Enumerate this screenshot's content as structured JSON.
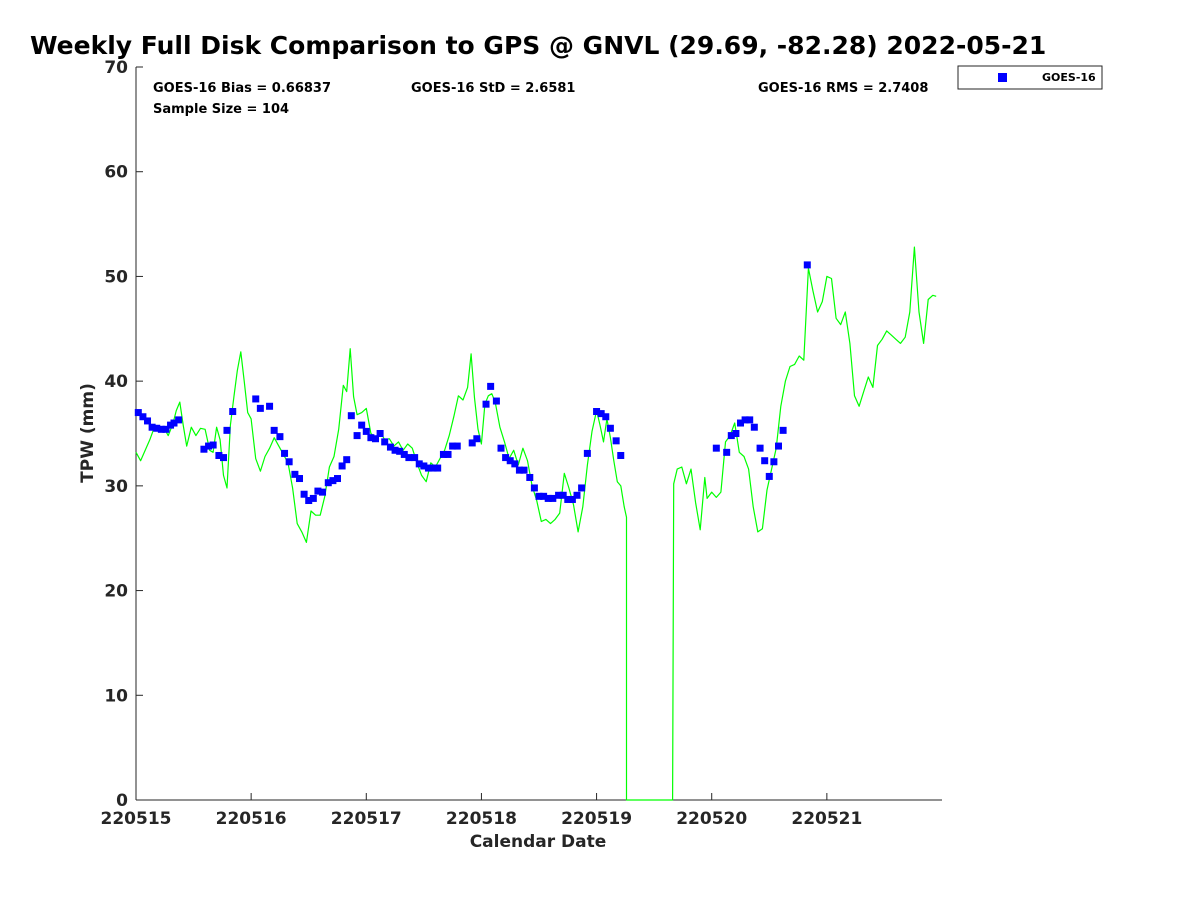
{
  "chart_data": {
    "type": "scatter",
    "title": "Weekly Full Disk Comparison to GPS @ GNVL (29.69, -82.28) 2022-05-21",
    "xlabel": "Calendar Date",
    "ylabel": "TPW (mm)",
    "xlim": [
      0,
      7
    ],
    "ylim": [
      0,
      70
    ],
    "x_unit": "days since 220515",
    "x_ticks": [
      {
        "value": 0,
        "label": "220515"
      },
      {
        "value": 1,
        "label": "220516"
      },
      {
        "value": 2,
        "label": "220517"
      },
      {
        "value": 3,
        "label": "220518"
      },
      {
        "value": 4,
        "label": "220519"
      },
      {
        "value": 5,
        "label": "220520"
      },
      {
        "value": 6,
        "label": "220521"
      }
    ],
    "y_ticks": [
      0,
      10,
      20,
      30,
      40,
      50,
      60,
      70
    ],
    "grid": false,
    "legend": {
      "position": "outside-top-right",
      "entries": [
        "GOES-16"
      ]
    },
    "stats": {
      "bias": "GOES-16 Bias = 0.66837",
      "std": "GOES-16 StD = 2.6581",
      "rms": "GOES-16 RMS = 2.7408",
      "sample": "Sample Size = 104"
    },
    "series": [
      {
        "name": "GPS",
        "kind": "line",
        "color": "#00ff00",
        "points": [
          [
            0,
            33.2
          ],
          [
            0.04,
            32.4
          ],
          [
            0.08,
            33.4
          ],
          [
            0.12,
            34.4
          ],
          [
            0.16,
            35.6
          ],
          [
            0.2,
            35.2
          ],
          [
            0.24,
            35.6
          ],
          [
            0.28,
            34.8
          ],
          [
            0.32,
            35.9
          ],
          [
            0.35,
            37.2
          ],
          [
            0.38,
            38
          ],
          [
            0.41,
            35.8
          ],
          [
            0.44,
            33.8
          ],
          [
            0.48,
            35.6
          ],
          [
            0.52,
            34.8
          ],
          [
            0.56,
            35.5
          ],
          [
            0.6,
            35.4
          ],
          [
            0.64,
            33.4
          ],
          [
            0.67,
            33.2
          ],
          [
            0.7,
            35.6
          ],
          [
            0.73,
            34.4
          ],
          [
            0.76,
            31
          ],
          [
            0.79,
            29.8
          ],
          [
            0.82,
            35.8
          ],
          [
            0.85,
            38.5
          ],
          [
            0.88,
            41
          ],
          [
            0.91,
            42.8
          ],
          [
            0.94,
            40
          ],
          [
            0.97,
            37
          ],
          [
            1,
            36.4
          ],
          [
            1.04,
            32.6
          ],
          [
            1.08,
            31.4
          ],
          [
            1.12,
            32.8
          ],
          [
            1.16,
            33.6
          ],
          [
            1.2,
            34.6
          ],
          [
            1.24,
            33.8
          ],
          [
            1.28,
            33
          ],
          [
            1.32,
            32.2
          ],
          [
            1.36,
            29.8
          ],
          [
            1.4,
            26.4
          ],
          [
            1.44,
            25.6
          ],
          [
            1.48,
            24.6
          ],
          [
            1.52,
            27.6
          ],
          [
            1.56,
            27.2
          ],
          [
            1.6,
            27.2
          ],
          [
            1.64,
            29
          ],
          [
            1.68,
            31.8
          ],
          [
            1.72,
            32.8
          ],
          [
            1.76,
            35.4
          ],
          [
            1.8,
            39.6
          ],
          [
            1.83,
            39
          ],
          [
            1.86,
            43.1
          ],
          [
            1.89,
            38.5
          ],
          [
            1.92,
            36.8
          ],
          [
            1.96,
            37
          ],
          [
            2,
            37.4
          ],
          [
            2.04,
            35
          ],
          [
            2.08,
            34.6
          ],
          [
            2.12,
            35.2
          ],
          [
            2.16,
            34.4
          ],
          [
            2.2,
            34.5
          ],
          [
            2.24,
            33.8
          ],
          [
            2.28,
            34.2
          ],
          [
            2.32,
            33.4
          ],
          [
            2.36,
            34
          ],
          [
            2.4,
            33.6
          ],
          [
            2.44,
            32.2
          ],
          [
            2.48,
            31
          ],
          [
            2.52,
            30.4
          ],
          [
            2.56,
            32.2
          ],
          [
            2.6,
            31.8
          ],
          [
            2.64,
            32.6
          ],
          [
            2.68,
            33.4
          ],
          [
            2.72,
            34.8
          ],
          [
            2.76,
            36.6
          ],
          [
            2.8,
            38.6
          ],
          [
            2.84,
            38.2
          ],
          [
            2.88,
            39.4
          ],
          [
            2.91,
            42.6
          ],
          [
            2.94,
            38.4
          ],
          [
            2.97,
            35.4
          ],
          [
            3,
            34
          ],
          [
            3.03,
            37.8
          ],
          [
            3.06,
            38.6
          ],
          [
            3.09,
            38.8
          ],
          [
            3.12,
            38
          ],
          [
            3.16,
            35.6
          ],
          [
            3.2,
            34.2
          ],
          [
            3.24,
            32.6
          ],
          [
            3.28,
            33.4
          ],
          [
            3.32,
            32
          ],
          [
            3.36,
            33.6
          ],
          [
            3.4,
            32.4
          ],
          [
            3.44,
            30
          ],
          [
            3.48,
            28.6
          ],
          [
            3.52,
            26.6
          ],
          [
            3.56,
            26.8
          ],
          [
            3.6,
            26.4
          ],
          [
            3.64,
            26.8
          ],
          [
            3.68,
            27.4
          ],
          [
            3.72,
            31.2
          ],
          [
            3.76,
            29.8
          ],
          [
            3.8,
            28.2
          ],
          [
            3.84,
            25.6
          ],
          [
            3.88,
            28
          ],
          [
            3.92,
            32
          ],
          [
            3.96,
            35.2
          ],
          [
            4,
            37.2
          ],
          [
            4.03,
            35.8
          ],
          [
            4.06,
            34.2
          ],
          [
            4.09,
            36.4
          ],
          [
            4.12,
            34.6
          ],
          [
            4.15,
            32.4
          ],
          [
            4.18,
            30.4
          ],
          [
            4.21,
            30
          ],
          [
            4.24,
            28
          ],
          [
            4.26,
            27
          ],
          [
            4.26,
            0
          ],
          [
            4.66,
            0
          ],
          [
            4.67,
            30.2
          ],
          [
            4.7,
            31.6
          ],
          [
            4.74,
            31.8
          ],
          [
            4.78,
            30.2
          ],
          [
            4.82,
            31.6
          ],
          [
            4.86,
            28.4
          ],
          [
            4.9,
            25.8
          ],
          [
            4.94,
            30.8
          ],
          [
            4.96,
            28.8
          ],
          [
            5,
            29.4
          ],
          [
            5.04,
            28.9
          ],
          [
            5.08,
            29.4
          ],
          [
            5.12,
            34.2
          ],
          [
            5.16,
            34.8
          ],
          [
            5.2,
            36
          ],
          [
            5.24,
            33.2
          ],
          [
            5.28,
            32.8
          ],
          [
            5.32,
            31.6
          ],
          [
            5.36,
            28
          ],
          [
            5.4,
            25.6
          ],
          [
            5.44,
            25.9
          ],
          [
            5.48,
            29.6
          ],
          [
            5.52,
            31.6
          ],
          [
            5.56,
            33.6
          ],
          [
            5.6,
            37.6
          ],
          [
            5.64,
            40
          ],
          [
            5.68,
            41.4
          ],
          [
            5.72,
            41.6
          ],
          [
            5.76,
            42.4
          ],
          [
            5.8,
            42
          ],
          [
            5.84,
            50.8
          ],
          [
            5.88,
            48.6
          ],
          [
            5.92,
            46.6
          ],
          [
            5.96,
            47.6
          ],
          [
            6,
            50
          ],
          [
            6.04,
            49.8
          ],
          [
            6.08,
            46
          ],
          [
            6.12,
            45.4
          ],
          [
            6.16,
            46.6
          ],
          [
            6.2,
            43.6
          ],
          [
            6.24,
            38.6
          ],
          [
            6.28,
            37.6
          ],
          [
            6.32,
            39
          ],
          [
            6.36,
            40.4
          ],
          [
            6.4,
            39.4
          ],
          [
            6.44,
            43.4
          ],
          [
            6.48,
            44
          ],
          [
            6.52,
            44.8
          ],
          [
            6.56,
            44.4
          ],
          [
            6.6,
            44
          ],
          [
            6.64,
            43.6
          ],
          [
            6.68,
            44.2
          ],
          [
            6.72,
            46.6
          ],
          [
            6.76,
            52.8
          ],
          [
            6.8,
            46.6
          ],
          [
            6.84,
            43.6
          ],
          [
            6.88,
            47.8
          ],
          [
            6.92,
            48.2
          ],
          [
            6.95,
            48.1
          ]
        ]
      },
      {
        "name": "GOES-16",
        "kind": "scatter",
        "color": "#0000ff",
        "points": [
          [
            0.02,
            37
          ],
          [
            0.06,
            36.6
          ],
          [
            0.1,
            36.2
          ],
          [
            0.14,
            35.6
          ],
          [
            0.18,
            35.5
          ],
          [
            0.22,
            35.4
          ],
          [
            0.26,
            35.4
          ],
          [
            0.3,
            35.8
          ],
          [
            0.33,
            36
          ],
          [
            0.37,
            36.3
          ],
          [
            0.59,
            33.5
          ],
          [
            0.63,
            33.8
          ],
          [
            0.67,
            33.9
          ],
          [
            0.72,
            32.9
          ],
          [
            0.76,
            32.7
          ],
          [
            0.79,
            35.3
          ],
          [
            0.84,
            37.1
          ],
          [
            1.04,
            38.3
          ],
          [
            1.08,
            37.4
          ],
          [
            1.16,
            37.6
          ],
          [
            1.2,
            35.3
          ],
          [
            1.25,
            34.7
          ],
          [
            1.29,
            33.1
          ],
          [
            1.33,
            32.3
          ],
          [
            1.38,
            31.1
          ],
          [
            1.42,
            30.7
          ],
          [
            1.46,
            29.2
          ],
          [
            1.5,
            28.6
          ],
          [
            1.54,
            28.8
          ],
          [
            1.58,
            29.5
          ],
          [
            1.62,
            29.4
          ],
          [
            1.67,
            30.3
          ],
          [
            1.71,
            30.5
          ],
          [
            1.75,
            30.7
          ],
          [
            1.79,
            31.9
          ],
          [
            1.83,
            32.5
          ],
          [
            1.87,
            36.7
          ],
          [
            1.92,
            34.8
          ],
          [
            1.96,
            35.8
          ],
          [
            2,
            35.2
          ],
          [
            2.04,
            34.6
          ],
          [
            2.08,
            34.5
          ],
          [
            2.12,
            35
          ],
          [
            2.16,
            34.2
          ],
          [
            2.21,
            33.7
          ],
          [
            2.25,
            33.4
          ],
          [
            2.29,
            33.3
          ],
          [
            2.33,
            33
          ],
          [
            2.37,
            32.7
          ],
          [
            2.42,
            32.7
          ],
          [
            2.46,
            32.1
          ],
          [
            2.5,
            31.9
          ],
          [
            2.54,
            31.7
          ],
          [
            2.58,
            31.7
          ],
          [
            2.62,
            31.7
          ],
          [
            2.67,
            33
          ],
          [
            2.71,
            33
          ],
          [
            2.75,
            33.8
          ],
          [
            2.79,
            33.8
          ],
          [
            2.92,
            34.1
          ],
          [
            2.96,
            34.5
          ],
          [
            3.04,
            37.8
          ],
          [
            3.08,
            39.5
          ],
          [
            3.13,
            38.1
          ],
          [
            3.17,
            33.6
          ],
          [
            3.21,
            32.7
          ],
          [
            3.25,
            32.4
          ],
          [
            3.29,
            32.1
          ],
          [
            3.33,
            31.5
          ],
          [
            3.37,
            31.5
          ],
          [
            3.42,
            30.8
          ],
          [
            3.46,
            29.8
          ],
          [
            3.5,
            29
          ],
          [
            3.54,
            29
          ],
          [
            3.58,
            28.8
          ],
          [
            3.62,
            28.8
          ],
          [
            3.67,
            29.1
          ],
          [
            3.71,
            29.1
          ],
          [
            3.75,
            28.7
          ],
          [
            3.79,
            28.7
          ],
          [
            3.83,
            29.1
          ],
          [
            3.87,
            29.8
          ],
          [
            3.92,
            33.1
          ],
          [
            4,
            37.1
          ],
          [
            4.04,
            36.9
          ],
          [
            4.08,
            36.6
          ],
          [
            4.12,
            35.5
          ],
          [
            4.17,
            34.3
          ],
          [
            4.21,
            32.9
          ],
          [
            5.04,
            33.6
          ],
          [
            5.13,
            33.2
          ],
          [
            5.17,
            34.8
          ],
          [
            5.21,
            35
          ],
          [
            5.25,
            36
          ],
          [
            5.29,
            36.3
          ],
          [
            5.33,
            36.3
          ],
          [
            5.37,
            35.6
          ],
          [
            5.42,
            33.6
          ],
          [
            5.46,
            32.4
          ],
          [
            5.5,
            30.9
          ],
          [
            5.54,
            32.3
          ],
          [
            5.58,
            33.8
          ],
          [
            5.62,
            35.3
          ],
          [
            5.83,
            51.1
          ]
        ]
      }
    ]
  }
}
